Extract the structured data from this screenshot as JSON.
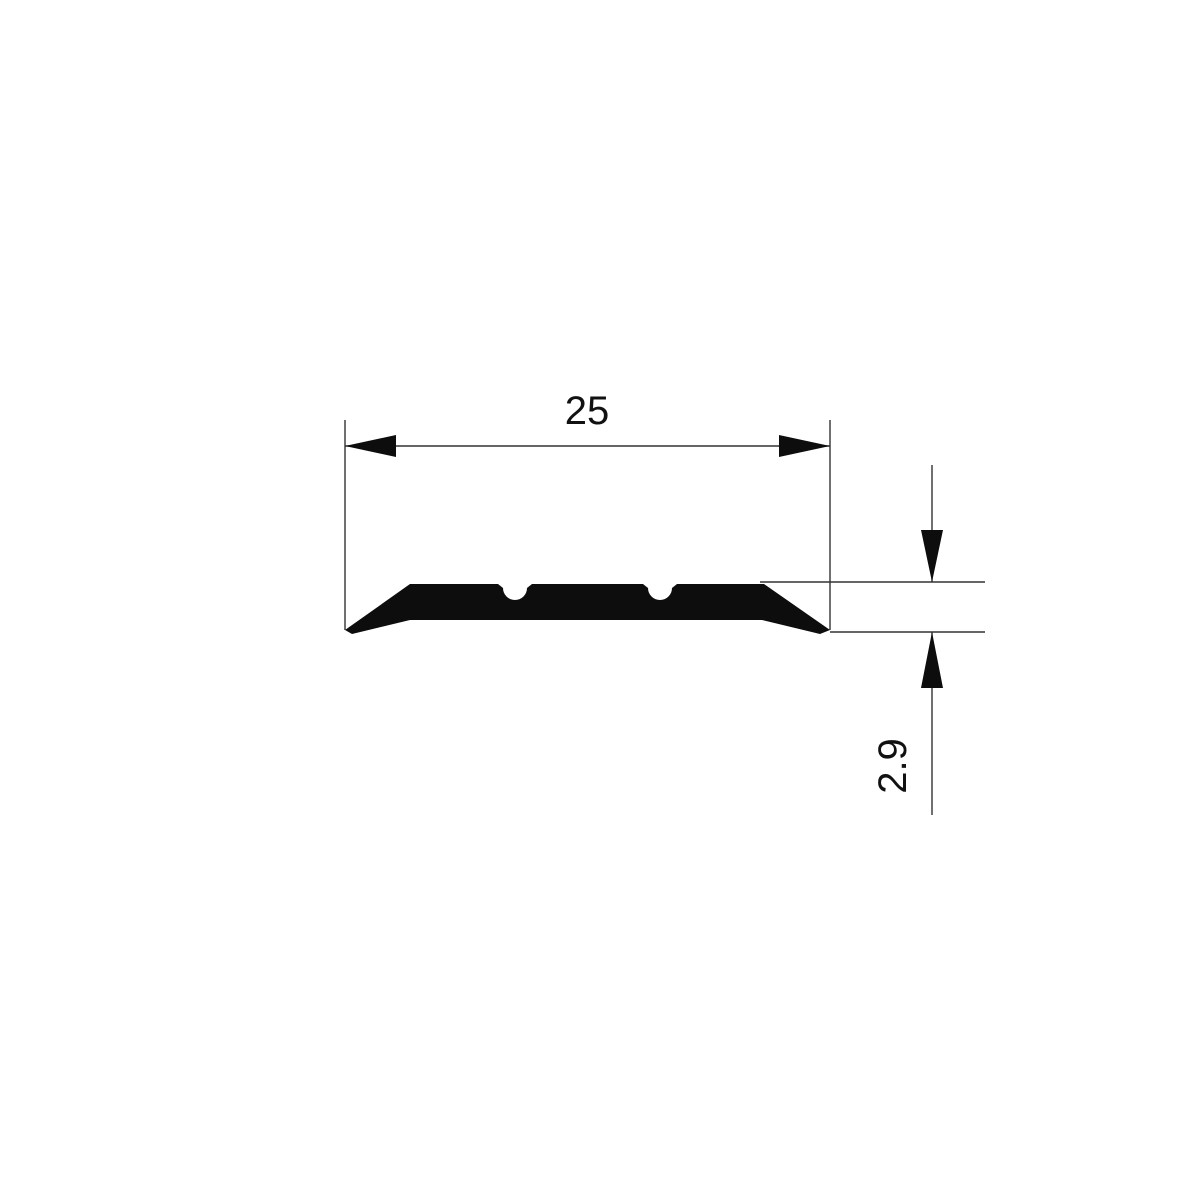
{
  "dimensions": {
    "width": {
      "label": "25"
    },
    "thickness": {
      "label": "2.9"
    }
  },
  "colors": {
    "profile": "#0d0d0d",
    "lines": "#333333",
    "background": "#ffffff"
  }
}
